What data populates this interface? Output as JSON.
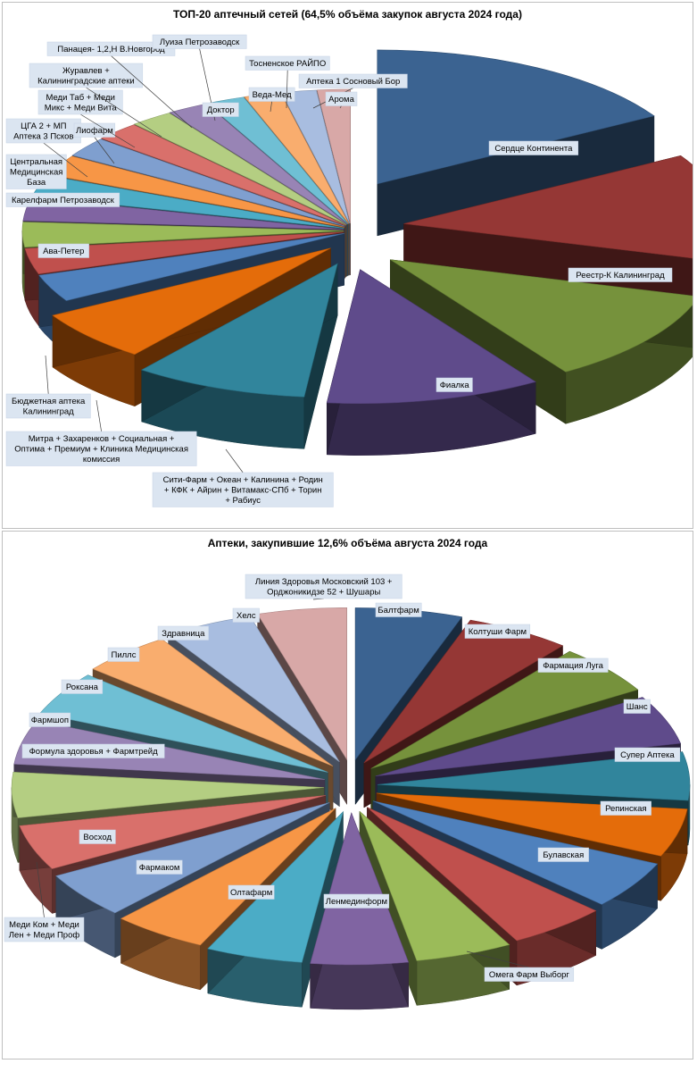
{
  "chart_data": [
    {
      "type": "pie",
      "title": "ТОП-20 аптечный сетей (64,5% объёма закупок августа 2024 года)",
      "slices": [
        {
          "label": "Сердце Континента",
          "value": 16.0,
          "color": "#3b6391"
        },
        {
          "label": "Реестр-К Калининград",
          "value": 12.5,
          "color": "#953735"
        },
        {
          "label": "Фиалка",
          "value": 11.0,
          "color": "#76923c"
        },
        {
          "label": "Сити-Фарм + Океан + Калинина + Родин + КФК + Айрин + Витамакс-СПб + Торин + Рабиус",
          "value": 10.5,
          "color": "#5f4b8b"
        },
        {
          "label": "Митра + Захаренков + Социальная + Оптима + Премиум + Клиника Медицинская комиссия",
          "value": 8.5,
          "color": "#31859c"
        },
        {
          "label": "Бюджетная аптека Калининград",
          "value": 6.0,
          "color": "#e46c0a"
        },
        {
          "label": "Ава-Петер",
          "value": 3.2,
          "color": "#4f81bd"
        },
        {
          "label": "Карелфарм Петрозаводск",
          "value": 3.0,
          "color": "#c0504d"
        },
        {
          "label": "Центральная Медицинская База",
          "value": 2.9,
          "color": "#9bbb59"
        },
        {
          "label": "ЦГА 2 + МП Аптека 3 Псков",
          "value": 2.7,
          "color": "#8064a2"
        },
        {
          "label": "Лиофарм",
          "value": 2.5,
          "color": "#4bacc6"
        },
        {
          "label": "Меди Таб + Меди Микс + Меди Вита",
          "value": 2.4,
          "color": "#f79646"
        },
        {
          "label": "Журавлев + Калининградские аптеки",
          "value": 2.3,
          "color": "#7f9fcf"
        },
        {
          "label": "Панацея- 1,2,Н В.Новгород",
          "value": 2.2,
          "color": "#d9706b"
        },
        {
          "label": "Луиза Петрозаводск",
          "value": 2.1,
          "color": "#b4ce82"
        },
        {
          "label": "Доктор",
          "value": 2.0,
          "color": "#9884b5"
        },
        {
          "label": "Веда-Мед",
          "value": 1.9,
          "color": "#6fbfd4"
        },
        {
          "label": "Тосненское РАЙПО",
          "value": 1.8,
          "color": "#f9ad6e"
        },
        {
          "label": "Аптека 1 Сосновый Бор",
          "value": 1.7,
          "color": "#a8bde0"
        },
        {
          "label": "Арома",
          "value": 1.6,
          "color": "#d8a8a7"
        }
      ]
    },
    {
      "type": "pie",
      "title": "Аптеки, закупившие 12,6% объёма августа 2024 года",
      "slices": [
        {
          "label": "Балтфарм",
          "value": 5.4,
          "color": "#3b6391"
        },
        {
          "label": "Колтуши Фарм",
          "value": 5.3,
          "color": "#953735"
        },
        {
          "label": "Фармация Луга",
          "value": 5.2,
          "color": "#76923c"
        },
        {
          "label": "Шанс",
          "value": 5.1,
          "color": "#5f4b8b"
        },
        {
          "label": "Супер Аптека",
          "value": 5.0,
          "color": "#31859c"
        },
        {
          "label": "Репинская",
          "value": 5.0,
          "color": "#e46c0a"
        },
        {
          "label": "Булавская",
          "value": 5.0,
          "color": "#4f81bd"
        },
        {
          "label": "Омега Фарм Выборг",
          "value": 5.0,
          "color": "#c0504d"
        },
        {
          "label": "Ленмединформ",
          "value": 4.9,
          "color": "#9bbb59"
        },
        {
          "label": "Олтафарм",
          "value": 4.9,
          "color": "#8064a2"
        },
        {
          "label": "Фармаком",
          "value": 4.9,
          "color": "#4bacc6"
        },
        {
          "label": "Восход",
          "value": 4.8,
          "color": "#f79646"
        },
        {
          "label": "Меди Ком + Меди Лен + Меди Проф",
          "value": 4.8,
          "color": "#7f9fcf"
        },
        {
          "label": "Формула здоровья + Фармтрейд",
          "value": 4.7,
          "color": "#d9706b"
        },
        {
          "label": "Фармшоп",
          "value": 4.7,
          "color": "#b4ce82"
        },
        {
          "label": "Роксана",
          "value": 4.6,
          "color": "#9884b5"
        },
        {
          "label": "Пиллс",
          "value": 4.6,
          "color": "#6fbfd4"
        },
        {
          "label": "Здравница",
          "value": 4.6,
          "color": "#f9ad6e"
        },
        {
          "label": "Хелс",
          "value": 4.5,
          "color": "#a8bde0"
        },
        {
          "label": "Линия Здоровья Московский 103 + Орджоникидзе 52 + Шушары",
          "value": 4.5,
          "color": "#d8a8a7"
        }
      ]
    }
  ]
}
